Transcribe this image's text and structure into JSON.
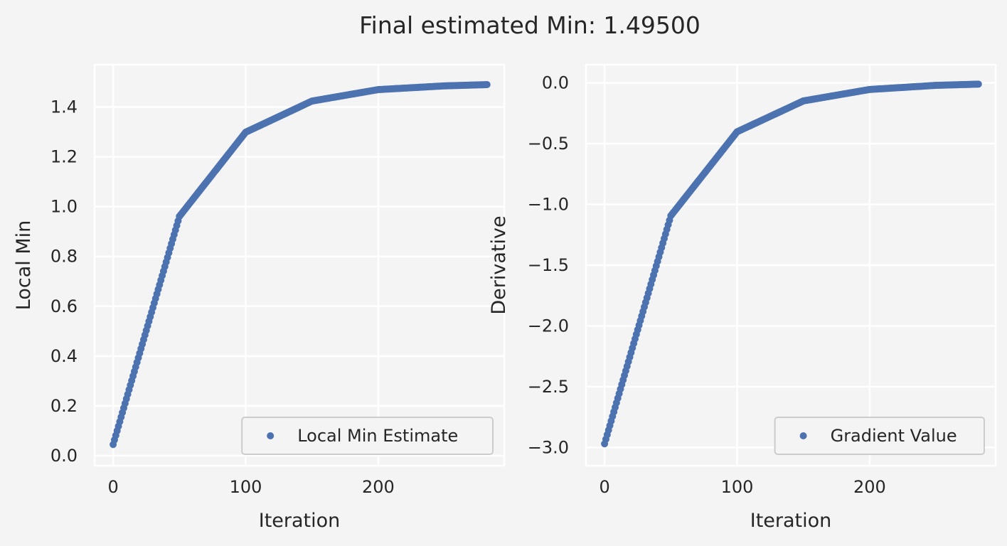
{
  "figure": {
    "suptitle": "Final estimated Min: 1.49500"
  },
  "colors": {
    "series": "#4c72b0",
    "background": "#f4f4f4",
    "grid": "#ffffff",
    "text": "#262626"
  },
  "chart_data": [
    {
      "type": "scatter",
      "title": "",
      "xlabel": "Iteration",
      "ylabel": "Local Min",
      "xlim": [
        -14,
        295
      ],
      "ylim": [
        -0.04,
        1.57
      ],
      "xticks": [
        0,
        100,
        200
      ],
      "xtick_labels": [
        "0",
        "100",
        "200"
      ],
      "yticks": [
        0.0,
        0.2,
        0.4,
        0.6,
        0.8,
        1.0,
        1.2,
        1.4
      ],
      "ytick_labels": [
        "0.0",
        "0.2",
        "0.4",
        "0.6",
        "0.8",
        "1.0",
        "1.2",
        "1.4"
      ],
      "grid": true,
      "legend_position": "lower-right",
      "series": [
        {
          "name": "Local Min Estimate",
          "x_start": 0,
          "x_end": 282,
          "x_step": 1,
          "model": "y = 1.495 - 1.45 * exp(-x / 50)",
          "sample_points": [
            [
              0,
              0.045
            ],
            [
              50,
              0.961
            ],
            [
              100,
              1.299
            ],
            [
              150,
              1.424
            ],
            [
              200,
              1.47
            ],
            [
              250,
              1.485
            ],
            [
              282,
              1.49
            ]
          ]
        }
      ]
    },
    {
      "type": "scatter",
      "title": "",
      "xlabel": "Iteration",
      "ylabel": "Derivative",
      "xlim": [
        -14,
        295
      ],
      "ylim": [
        -3.15,
        0.15
      ],
      "xticks": [
        0,
        100,
        200
      ],
      "xtick_labels": [
        "0",
        "100",
        "200"
      ],
      "yticks": [
        0.0,
        -0.5,
        -1.0,
        -1.5,
        -2.0,
        -2.5,
        -3.0
      ],
      "ytick_labels": [
        "0.0",
        "−0.5",
        "−1.0",
        "−1.5",
        "−2.0",
        "−2.5",
        "−3.0"
      ],
      "grid": true,
      "legend_position": "lower-right",
      "series": [
        {
          "name": "Gradient Value",
          "x_start": 0,
          "x_end": 282,
          "x_step": 1,
          "model": "y = -2.97 * exp(-x / 50)",
          "sample_points": [
            [
              0,
              -2.97
            ],
            [
              50,
              -1.093
            ],
            [
              100,
              -0.402
            ],
            [
              150,
              -0.148
            ],
            [
              200,
              -0.054
            ],
            [
              250,
              -0.02
            ],
            [
              282,
              -0.01
            ]
          ]
        }
      ]
    }
  ]
}
